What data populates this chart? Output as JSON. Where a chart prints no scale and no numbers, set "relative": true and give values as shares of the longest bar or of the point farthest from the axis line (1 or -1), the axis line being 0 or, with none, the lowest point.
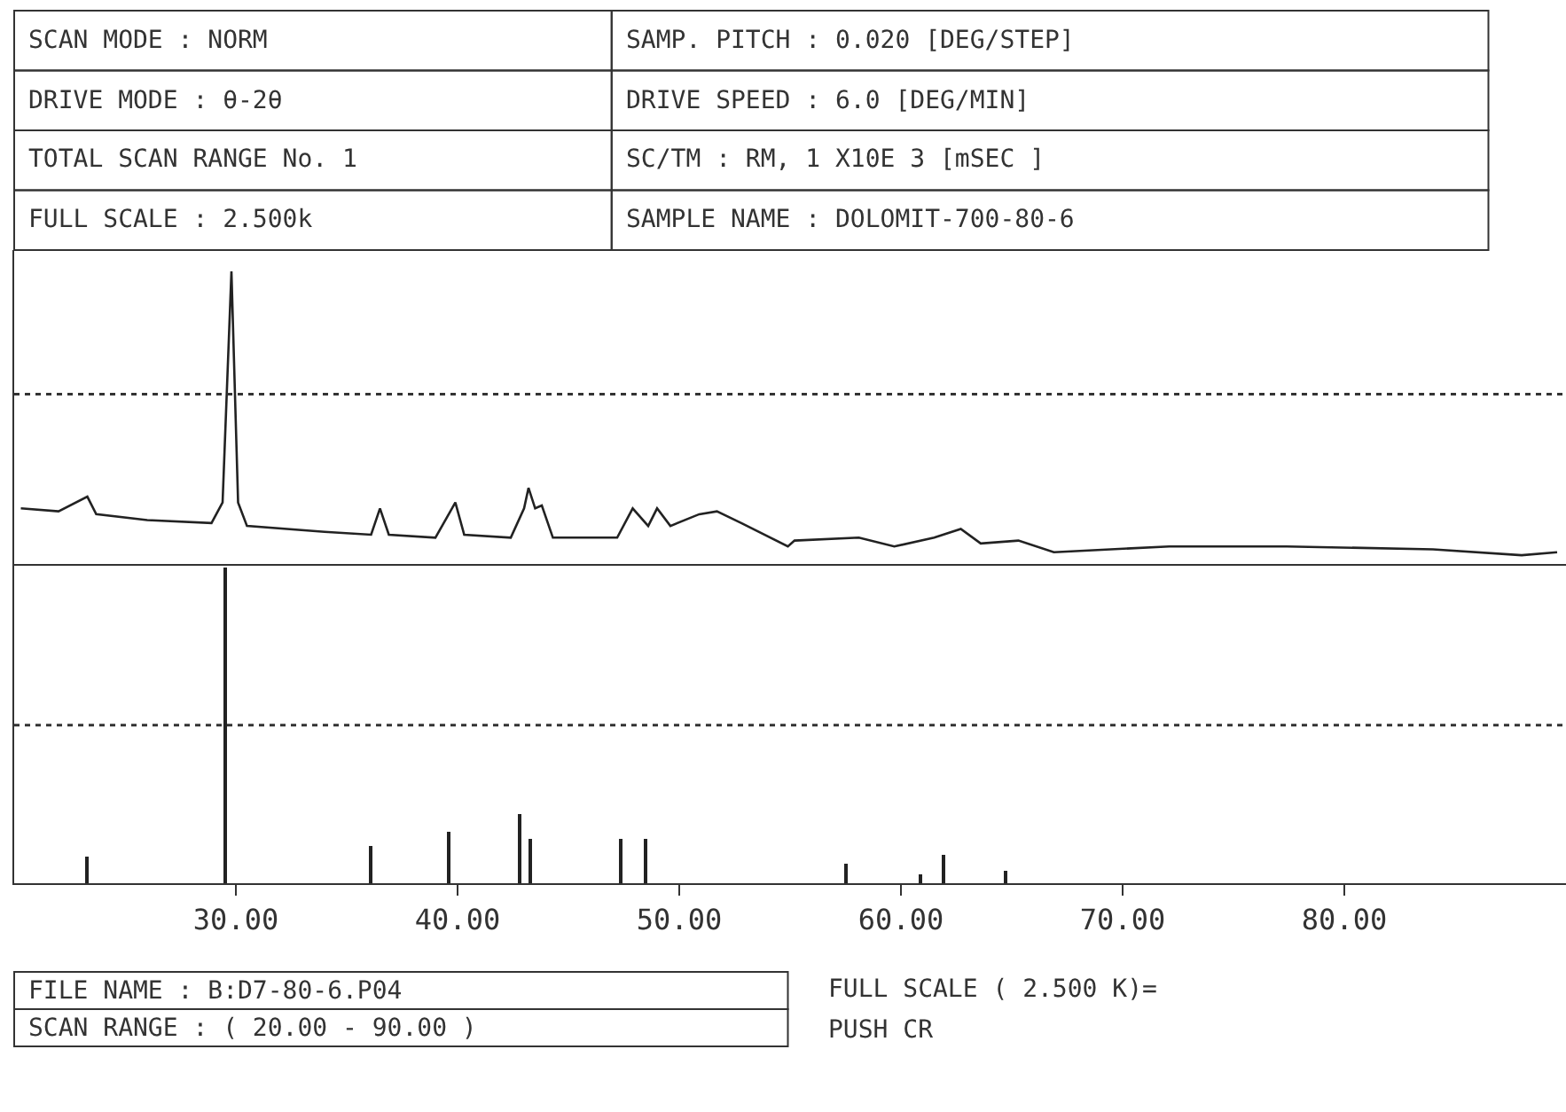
{
  "chart_data": [
    {
      "type": "other",
      "annotations": [
        "SCAN MODE : NORM",
        "DRIVE MODE : θ-2θ",
        "TOTAL SCAN RANGE No. 1",
        "FULL SCALE : 2.500k",
        "SAMP. PITCH : 0.020 [DEG/STEP]",
        "DRIVE SPEED : 6.0 [DEG/MIN]",
        "SC/TM : RM, 1 X10E 3 [mSEC ]",
        "SAMPLE NAME : DOLOMIT-700-80-6"
      ]
    },
    {
      "type": "line",
      "relative": true,
      "tick_labels": false,
      "xlim": [
        20,
        90
      ],
      "xticks": [
        {
          "value": 30,
          "label": null
        },
        {
          "value": 40,
          "label": null
        },
        {
          "value": 50,
          "label": null
        },
        {
          "value": 60,
          "label": null
        },
        {
          "value": 70,
          "label": null
        },
        {
          "value": 80,
          "label": null
        }
      ],
      "x": [
        20.3,
        22.0,
        23.3,
        23.7,
        26.0,
        28.9,
        29.4,
        29.8,
        30.1,
        30.5,
        34.0,
        36.1,
        36.5,
        36.9,
        39.0,
        39.9,
        40.3,
        42.4,
        43.0,
        43.2,
        43.5,
        43.8,
        44.3,
        47.2,
        47.9,
        48.6,
        49.0,
        49.6,
        50.9,
        51.7,
        52.8,
        54.9,
        55.2,
        58.1,
        59.7,
        61.5,
        62.7,
        63.6,
        65.3,
        66.9,
        72.1,
        77.4,
        84.0,
        88.0,
        89.6
      ],
      "series": [
        {
          "color": "#222222",
          "values": [
            0.19,
            0.18,
            0.23,
            0.17,
            0.15,
            0.14,
            0.21,
            1.0,
            0.21,
            0.13,
            0.11,
            0.1,
            0.19,
            0.1,
            0.09,
            0.21,
            0.1,
            0.09,
            0.19,
            0.26,
            0.19,
            0.2,
            0.09,
            0.09,
            0.19,
            0.13,
            0.19,
            0.13,
            0.17,
            0.18,
            0.14,
            0.06,
            0.08,
            0.09,
            0.06,
            0.09,
            0.12,
            0.07,
            0.08,
            0.04,
            0.06,
            0.06,
            0.05,
            0.03,
            0.04
          ]
        }
      ],
      "ref_lines": [
        {
          "axis": "y",
          "value": 0.58,
          "line_style": "dotted",
          "color": "#333333"
        }
      ]
    },
    {
      "type": "bar",
      "relative": true,
      "tick_labels": "x",
      "xlim": [
        20,
        90
      ],
      "xticks": [
        {
          "value": 30,
          "label": "30.00"
        },
        {
          "value": 40,
          "label": "40.00"
        },
        {
          "value": 50,
          "label": "50.00"
        },
        {
          "value": 60,
          "label": "60.00"
        },
        {
          "value": 70,
          "label": "70.00"
        },
        {
          "value": 80,
          "label": "80.00"
        }
      ],
      "x": [
        23.3,
        29.5,
        36.1,
        39.6,
        42.8,
        43.3,
        47.4,
        48.5,
        57.5,
        60.9,
        61.9,
        64.7
      ],
      "series": [
        {
          "color": "#222222",
          "values": [
            0.083,
            1.0,
            0.12,
            0.16,
            0.22,
            0.14,
            0.14,
            0.14,
            0.06,
            0.03,
            0.09,
            0.04
          ]
        }
      ],
      "ref_lines": [
        {
          "axis": "y",
          "value": 0.5,
          "line_style": "dotted",
          "color": "#333333"
        }
      ]
    },
    {
      "type": "other",
      "annotations": [
        "FILE NAME : B:D7-80-6.P04",
        "SCAN RANGE : ( 20.00 - 90.00 )",
        "FULL SCALE ( 2.500 K)=",
        "PUSH CR"
      ]
    }
  ]
}
